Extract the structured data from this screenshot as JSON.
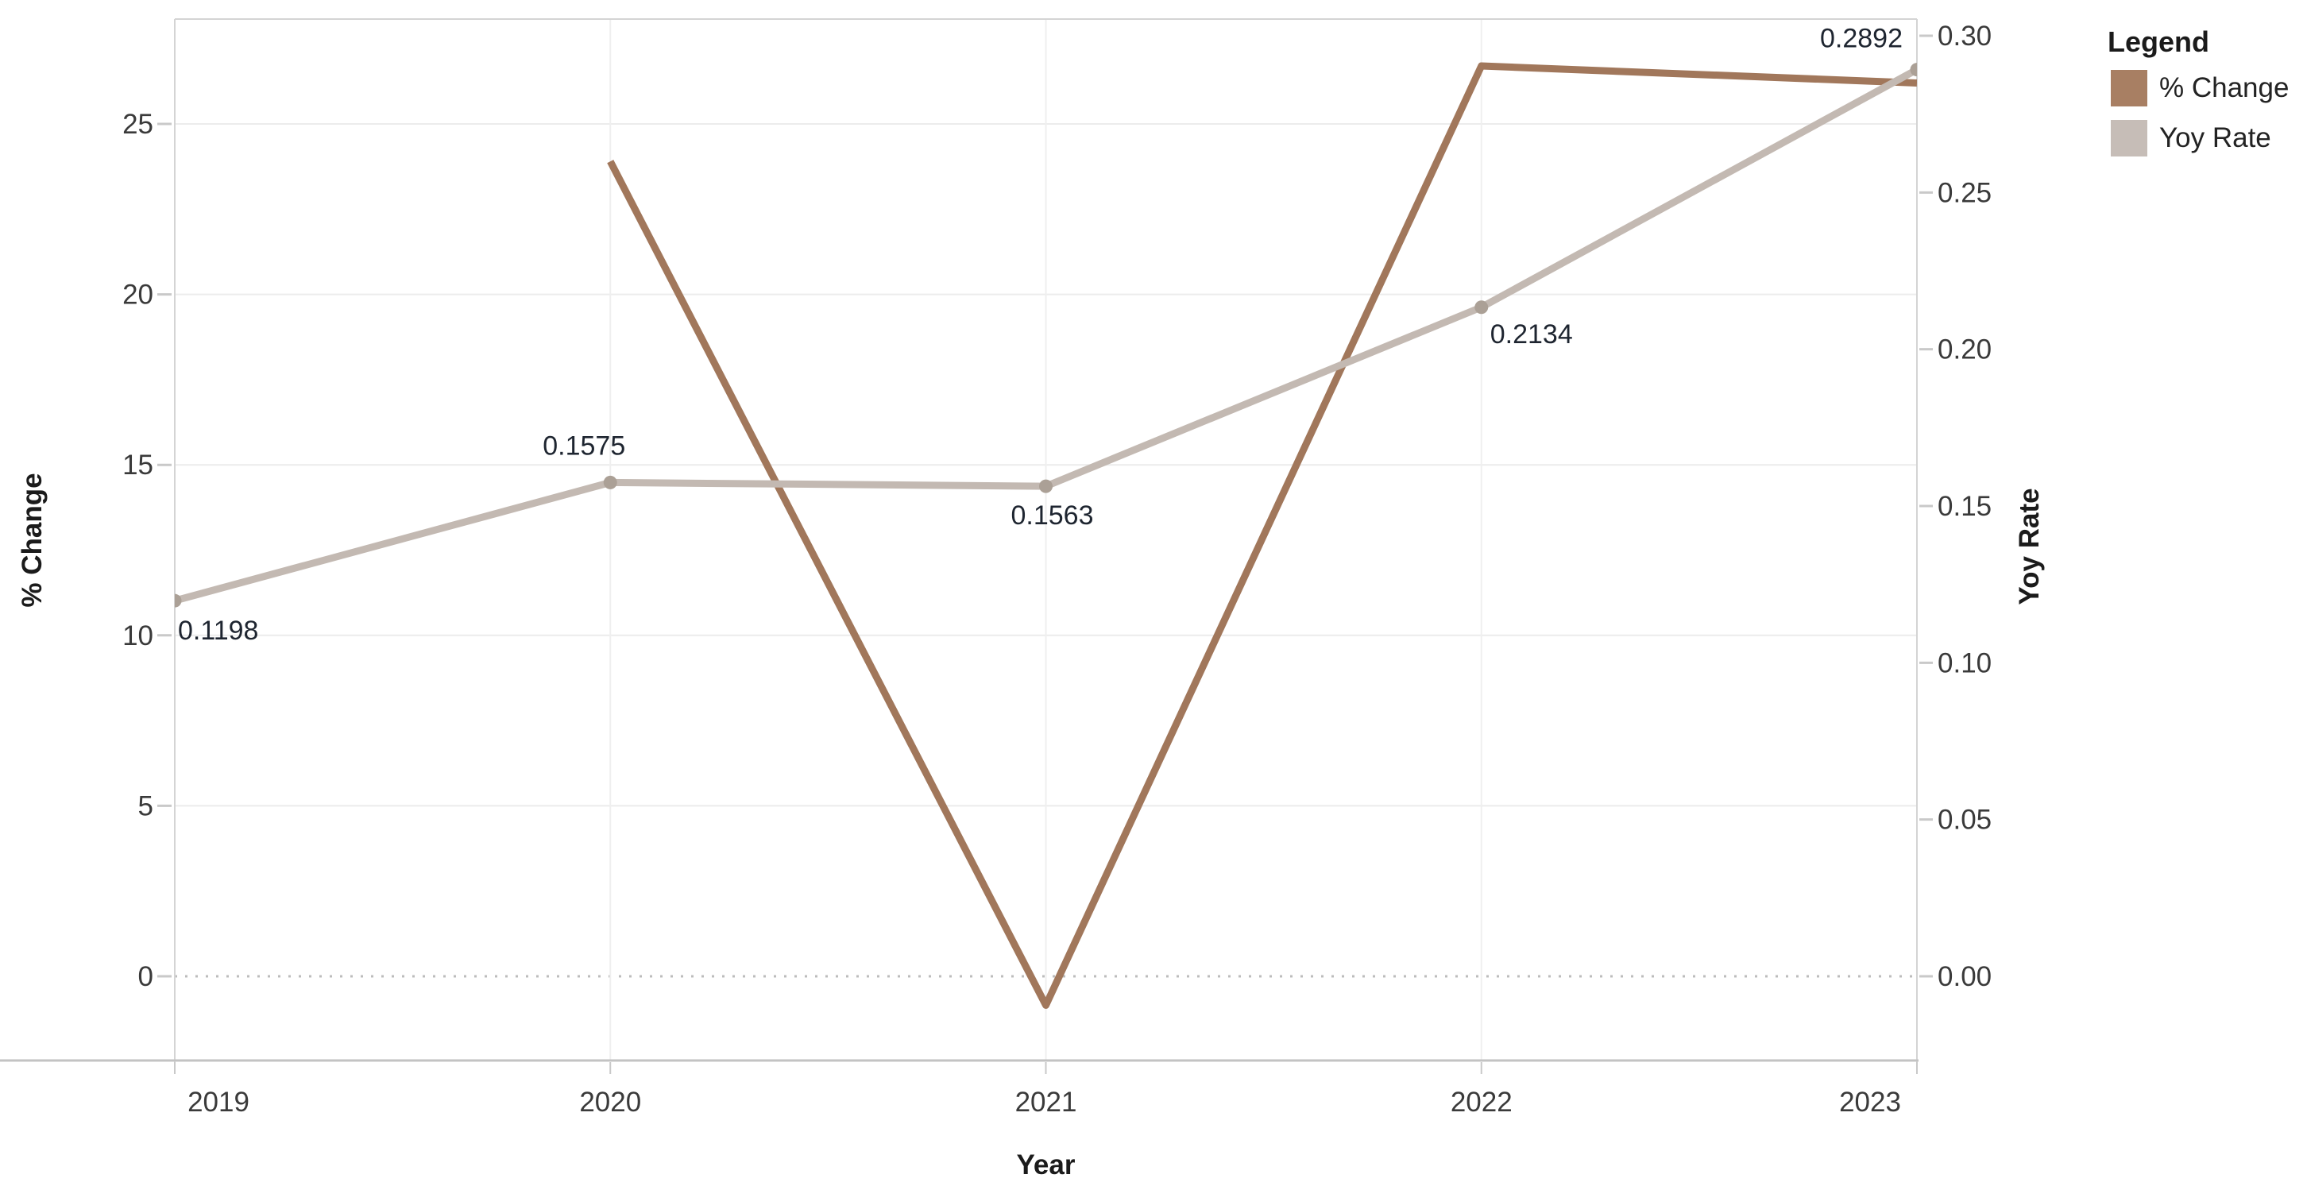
{
  "chart_data": {
    "type": "line",
    "dual_axis": true,
    "x_axis": {
      "title": "Year",
      "ticks": [
        "2019",
        "2020",
        "2021",
        "2022",
        "2023"
      ]
    },
    "left_axis": {
      "title": "% Change",
      "ticks": [
        "0",
        "5",
        "10",
        "15",
        "20",
        "25"
      ],
      "tick_values": [
        0,
        5,
        10,
        15,
        20,
        25
      ]
    },
    "right_axis": {
      "title": "Yoy Rate",
      "ticks": [
        "0.00",
        "0.05",
        "0.10",
        "0.15",
        "0.20",
        "0.25",
        "0.30"
      ],
      "tick_values": [
        0.0,
        0.05,
        0.1,
        0.15,
        0.2,
        0.25,
        0.3
      ]
    },
    "series": [
      {
        "name": "% Change",
        "axis": "left",
        "color": "#a1775b",
        "x": [
          2020,
          2021,
          2022,
          2023
        ],
        "values": [
          23.9,
          -0.85,
          26.7,
          26.2
        ],
        "markers": false,
        "labels": []
      },
      {
        "name": "Yoy Rate",
        "axis": "right",
        "color": "#c3b9b2",
        "marker_color": "#aba096",
        "x": [
          2019,
          2020,
          2021,
          2022,
          2023
        ],
        "values": [
          0.1198,
          0.1575,
          0.1563,
          0.2134,
          0.2892
        ],
        "markers": true,
        "labels": [
          "0.1198",
          "0.1575",
          "0.1563",
          "0.2134",
          "0.2892"
        ]
      }
    ],
    "legend": {
      "title": "Legend",
      "entries": [
        {
          "label": "% Change",
          "color": "#a87f63"
        },
        {
          "label": "Yoy Rate",
          "color": "#c6bdb7"
        }
      ]
    },
    "grid": true,
    "zero_line": "dotted",
    "legend_position": "top-right"
  },
  "colors": {
    "grid": "#ececec",
    "border": "#d4d4d4",
    "axis_line": "#c3c3c3",
    "tick_mark": "#c9c9c9",
    "zero_line": "#bcbcbc",
    "tick_label": "#3a3a3a",
    "title": "#1b1b1b",
    "data_label": "#1e2530"
  }
}
